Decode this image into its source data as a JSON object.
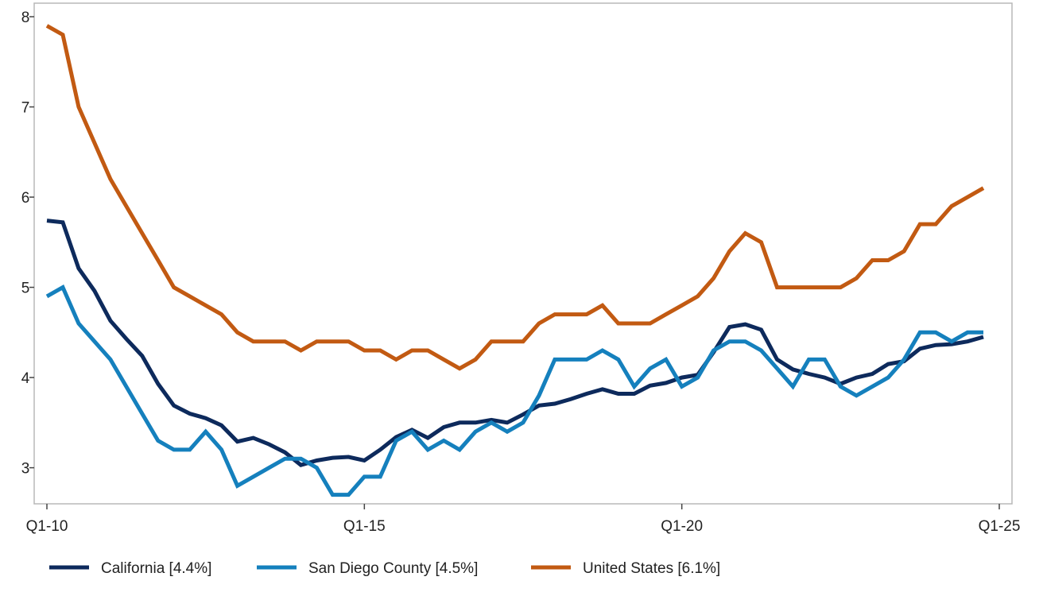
{
  "chart_data": {
    "type": "line",
    "title": "",
    "xlabel": "",
    "ylabel": "",
    "x_tick_labels": [
      "Q1-10",
      "Q1-15",
      "Q1-20",
      "Q1-25"
    ],
    "y_ticks": [
      3,
      4,
      5,
      6,
      7,
      8
    ],
    "xlim": [
      0,
      60
    ],
    "ylim": [
      2.6,
      8.15
    ],
    "grid": false,
    "legend_position": "bottom",
    "series": [
      {
        "name": "California [4.4%]",
        "color": "#0d2a5c",
        "values": [
          5.74,
          5.72,
          5.21,
          4.96,
          4.63,
          4.43,
          4.24,
          3.93,
          3.69,
          3.6,
          3.55,
          3.47,
          3.29,
          3.33,
          3.26,
          3.17,
          3.03,
          3.08,
          3.11,
          3.12,
          3.08,
          3.2,
          3.34,
          3.42,
          3.33,
          3.45,
          3.5,
          3.5,
          3.53,
          3.5,
          3.59,
          3.69,
          3.71,
          3.76,
          3.82,
          3.87,
          3.82,
          3.82,
          3.91,
          3.94,
          4.0,
          4.03,
          4.28,
          4.56,
          4.59,
          4.53,
          4.2,
          4.09,
          4.04,
          4.0,
          3.93,
          4.0,
          4.04,
          4.15,
          4.18,
          4.32,
          4.36,
          4.37,
          4.4,
          4.45
        ]
      },
      {
        "name": "San Diego County [4.5%]",
        "color": "#1580bd",
        "values": [
          4.9,
          5.0,
          4.6,
          4.4,
          4.2,
          3.9,
          3.6,
          3.3,
          3.2,
          3.2,
          3.4,
          3.2,
          2.8,
          2.9,
          3.0,
          3.1,
          3.1,
          3.0,
          2.7,
          2.7,
          2.9,
          2.9,
          3.3,
          3.4,
          3.2,
          3.3,
          3.2,
          3.4,
          3.5,
          3.4,
          3.5,
          3.8,
          4.2,
          4.2,
          4.2,
          4.3,
          4.2,
          3.9,
          4.1,
          4.2,
          3.9,
          4.0,
          4.3,
          4.4,
          4.4,
          4.3,
          4.1,
          3.9,
          4.2,
          4.2,
          3.9,
          3.8,
          3.9,
          4.0,
          4.2,
          4.5,
          4.5,
          4.4,
          4.5,
          4.5
        ]
      },
      {
        "name": "United States [6.1%]",
        "color": "#c25a12",
        "values": [
          7.9,
          7.8,
          7.0,
          6.6,
          6.2,
          5.9,
          5.6,
          5.3,
          5.0,
          4.9,
          4.8,
          4.7,
          4.5,
          4.4,
          4.4,
          4.4,
          4.3,
          4.4,
          4.4,
          4.4,
          4.3,
          4.3,
          4.2,
          4.3,
          4.3,
          4.2,
          4.1,
          4.2,
          4.4,
          4.4,
          4.4,
          4.6,
          4.7,
          4.7,
          4.7,
          4.8,
          4.6,
          4.6,
          4.6,
          4.7,
          4.8,
          4.9,
          5.1,
          5.4,
          5.6,
          5.5,
          5.0,
          5.0,
          5.0,
          5.0,
          5.0,
          5.1,
          5.3,
          5.3,
          5.4,
          5.7,
          5.7,
          5.9,
          6.0,
          6.1
        ]
      }
    ]
  }
}
